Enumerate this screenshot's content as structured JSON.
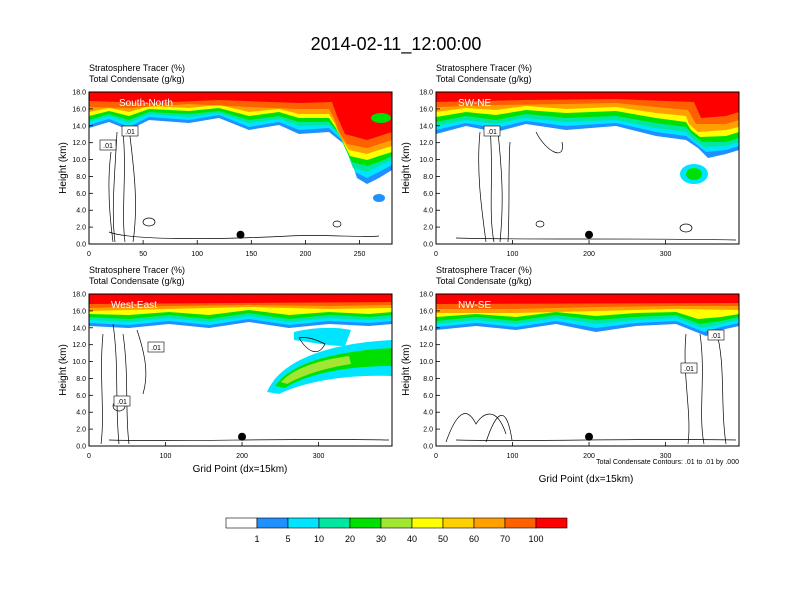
{
  "title": "2014-02-11_12:00:00",
  "colorbar": {
    "colors": [
      "#ffffff",
      "#1e90ff",
      "#00e5ff",
      "#00e8a0",
      "#00e000",
      "#a0e632",
      "#ffff00",
      "#ffd000",
      "#ffa000",
      "#ff6000",
      "#ff0000"
    ],
    "labels": [
      "1",
      "5",
      "10",
      "20",
      "30",
      "40",
      "50",
      "60",
      "70",
      "100"
    ]
  },
  "chart_data": [
    {
      "type": "heatmap",
      "panel_label": "South-North",
      "subtitle_line1": "Stratosphere Tracer   (%)",
      "subtitle_line2": "Total Condensate   (g/kg)",
      "ylabel": "Height (km)",
      "xlabel": "",
      "xlim": [
        0,
        280
      ],
      "ylim": [
        0,
        18
      ],
      "xticks": [
        "0",
        "50",
        "100",
        "150",
        "200",
        "250"
      ],
      "xtick_values": [
        0,
        50,
        100,
        150,
        200,
        250
      ],
      "yticks": [
        "0.0",
        "2.0",
        "4.0",
        "6.0",
        "8.0",
        "10.0",
        "12.0",
        "14.0",
        "16.0",
        "18.0"
      ],
      "contour_labels": [
        ".01",
        ".01"
      ],
      "marker_x": 140,
      "marker_y": 1.1
    },
    {
      "type": "heatmap",
      "panel_label": "SW-NE",
      "subtitle_line1": "Stratosphere Tracer   (%)",
      "subtitle_line2": "Total Condensate   (g/kg)",
      "ylabel": "Height (km)",
      "xlabel": "",
      "xlim": [
        0,
        396
      ],
      "ylim": [
        0,
        18
      ],
      "xticks": [
        "0",
        "100",
        "200",
        "300"
      ],
      "xtick_values": [
        0,
        100,
        200,
        300
      ],
      "yticks": [
        "0.0",
        "2.0",
        "4.0",
        "6.0",
        "8.0",
        "10.0",
        "12.0",
        "14.0",
        "16.0",
        "18.0"
      ],
      "contour_labels": [
        ".01"
      ],
      "marker_x": 200,
      "marker_y": 1.1
    },
    {
      "type": "heatmap",
      "panel_label": "West-East",
      "subtitle_line1": "Stratosphere Tracer   (%)",
      "subtitle_line2": "Total Condensate   (g/kg)",
      "ylabel": "Height (km)",
      "xlabel": "Grid Point (dx=15km)",
      "xlim": [
        0,
        396
      ],
      "ylim": [
        0,
        18
      ],
      "xticks": [
        "0",
        "100",
        "200",
        "300"
      ],
      "xtick_values": [
        0,
        100,
        200,
        300
      ],
      "yticks": [
        "0.0",
        "2.0",
        "4.0",
        "6.0",
        "8.0",
        "10.0",
        "12.0",
        "14.0",
        "16.0",
        "18.0"
      ],
      "contour_labels": [
        ".01",
        ".01"
      ],
      "marker_x": 200,
      "marker_y": 1.1
    },
    {
      "type": "heatmap",
      "panel_label": "NW-SE",
      "subtitle_line1": "Stratosphere Tracer   (%)",
      "subtitle_line2": "Total Condensate   (g/kg)",
      "ylabel": "Height (km)",
      "xlabel": "Grid Point (dx=15km)",
      "xlim": [
        0,
        396
      ],
      "ylim": [
        0,
        18
      ],
      "xticks": [
        "0",
        "100",
        "200",
        "300"
      ],
      "xtick_values": [
        0,
        100,
        200,
        300
      ],
      "yticks": [
        "0.0",
        "2.0",
        "4.0",
        "6.0",
        "8.0",
        "10.0",
        "12.0",
        "14.0",
        "16.0",
        "18.0"
      ],
      "contour_labels": [
        ".01",
        ".01"
      ],
      "marker_x": 200,
      "marker_y": 1.1,
      "footnote": "Total Condensate Contours: .01 to .01 by .000"
    }
  ]
}
